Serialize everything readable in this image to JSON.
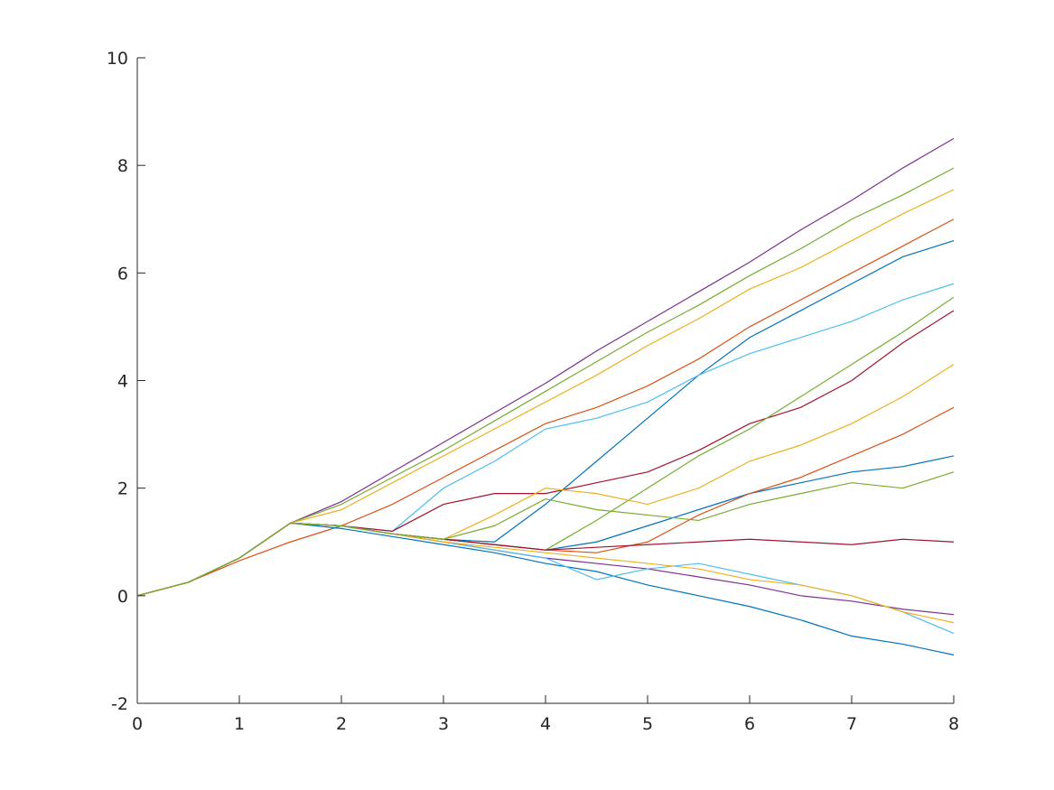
{
  "chart_data": {
    "type": "line",
    "x": [
      0,
      0.5,
      1,
      1.5,
      2,
      2.5,
      3,
      3.5,
      4,
      4.5,
      5,
      5.5,
      6,
      6.5,
      7,
      7.5,
      8
    ],
    "xlim": [
      0,
      8
    ],
    "xticks": [
      0,
      1,
      2,
      3,
      4,
      5,
      6,
      7,
      8
    ],
    "ylim": [
      -2,
      10
    ],
    "yticks": [
      -2,
      0,
      2,
      4,
      6,
      8,
      10
    ],
    "grid": false,
    "series": [
      {
        "color": "#7E2F8E",
        "values": [
          0,
          0.25,
          0.7,
          1.35,
          1.75,
          2.3,
          2.85,
          3.4,
          3.95,
          4.55,
          5.1,
          5.65,
          6.2,
          6.8,
          7.35,
          7.95,
          8.5
        ]
      },
      {
        "color": "#77AC30",
        "values": [
          0,
          0.25,
          0.7,
          1.35,
          1.7,
          2.2,
          2.7,
          3.25,
          3.8,
          4.35,
          4.9,
          5.4,
          5.95,
          6.45,
          7.0,
          7.45,
          7.95
        ]
      },
      {
        "color": "#EDB120",
        "values": [
          0,
          0.25,
          0.7,
          1.35,
          1.6,
          2.1,
          2.6,
          3.1,
          3.6,
          4.1,
          4.65,
          5.15,
          5.7,
          6.1,
          6.6,
          7.1,
          7.55
        ]
      },
      {
        "color": "#D95319",
        "values": [
          0,
          0.25,
          0.65,
          1.0,
          1.3,
          1.7,
          2.2,
          2.7,
          3.2,
          3.5,
          3.9,
          4.4,
          5.0,
          5.5,
          6.0,
          6.5,
          7.0
        ]
      },
      {
        "color": "#0072BD",
        "values": [
          0,
          0.25,
          0.7,
          1.35,
          1.3,
          1.15,
          1.05,
          1.0,
          1.7,
          2.5,
          3.3,
          4.1,
          4.8,
          5.3,
          5.8,
          6.3,
          6.6
        ]
      },
      {
        "color": "#4DBEEE",
        "values": [
          0,
          0.25,
          0.7,
          1.35,
          1.3,
          1.2,
          2.0,
          2.5,
          3.1,
          3.3,
          3.6,
          4.1,
          4.5,
          4.8,
          5.1,
          5.5,
          5.8
        ]
      },
      {
        "color": "#A2142F",
        "values": [
          0,
          0.25,
          0.7,
          1.35,
          1.3,
          1.2,
          1.7,
          1.9,
          1.9,
          2.1,
          2.3,
          2.7,
          3.2,
          3.5,
          4.0,
          4.7,
          5.3
        ]
      },
      {
        "color": "#77AC30",
        "values": [
          0,
          0.25,
          0.7,
          1.35,
          1.3,
          1.15,
          1.05,
          0.95,
          0.85,
          1.4,
          2.0,
          2.6,
          3.1,
          3.7,
          4.3,
          4.9,
          5.55
        ]
      },
      {
        "color": "#EDB120",
        "values": [
          0,
          0.25,
          0.7,
          1.35,
          1.3,
          1.15,
          1.05,
          1.5,
          2.0,
          1.9,
          1.7,
          2.0,
          2.5,
          2.8,
          3.2,
          3.7,
          4.3
        ]
      },
      {
        "color": "#0072BD",
        "values": [
          0,
          0.25,
          0.7,
          1.35,
          1.3,
          1.15,
          1.05,
          0.95,
          0.85,
          1.0,
          1.3,
          1.6,
          1.9,
          2.1,
          2.3,
          2.4,
          2.6
        ]
      },
      {
        "color": "#D95319",
        "values": [
          0,
          0.25,
          0.7,
          1.35,
          1.3,
          1.15,
          1.05,
          0.95,
          0.85,
          0.8,
          1.0,
          1.5,
          1.9,
          2.2,
          2.6,
          3.0,
          3.5
        ]
      },
      {
        "color": "#7E2F8E",
        "values": [
          0,
          0.25,
          0.7,
          1.35,
          1.3,
          1.15,
          1.0,
          0.85,
          0.7,
          0.6,
          0.5,
          0.35,
          0.2,
          0.0,
          -0.1,
          -0.25,
          -0.35
        ]
      },
      {
        "color": "#0072BD",
        "values": [
          0,
          0.25,
          0.7,
          1.35,
          1.25,
          1.1,
          0.95,
          0.8,
          0.6,
          0.45,
          0.2,
          0.0,
          -0.2,
          -0.45,
          -0.75,
          -0.9,
          -1.1
        ]
      },
      {
        "color": "#4DBEEE",
        "values": [
          0,
          0.25,
          0.7,
          1.35,
          1.3,
          1.15,
          1.0,
          0.85,
          0.7,
          0.3,
          0.5,
          0.6,
          0.4,
          0.2,
          0.0,
          -0.3,
          -0.7
        ]
      },
      {
        "color": "#A2142F",
        "values": [
          0,
          0.25,
          0.7,
          1.35,
          1.3,
          1.15,
          1.05,
          0.95,
          0.85,
          0.9,
          0.95,
          1.0,
          1.05,
          1.0,
          0.95,
          1.05,
          1.0
        ]
      },
      {
        "color": "#EDB120",
        "values": [
          0,
          0.25,
          0.7,
          1.35,
          1.3,
          1.15,
          1.0,
          0.9,
          0.8,
          0.7,
          0.6,
          0.5,
          0.3,
          0.2,
          0.0,
          -0.3,
          -0.5
        ]
      },
      {
        "color": "#77AC30",
        "values": [
          0,
          0.25,
          0.7,
          1.35,
          1.3,
          1.15,
          1.05,
          1.3,
          1.8,
          1.6,
          1.5,
          1.4,
          1.7,
          1.9,
          2.1,
          2.0,
          2.3
        ]
      }
    ]
  }
}
